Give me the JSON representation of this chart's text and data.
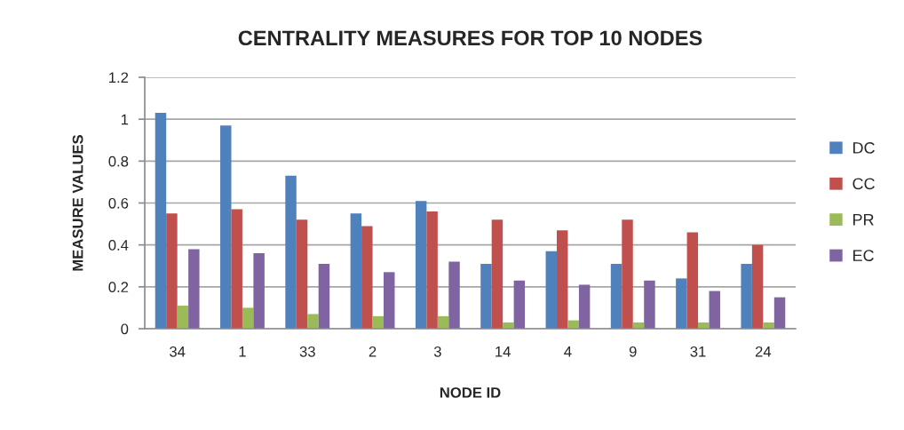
{
  "chart_data": {
    "type": "bar",
    "title": "CENTRALITY MEASURES FOR TOP 10 NODES",
    "xlabel": "NODE ID",
    "ylabel": "MEASURE VALUES",
    "categories": [
      "34",
      "1",
      "33",
      "2",
      "3",
      "14",
      "4",
      "9",
      "31",
      "24"
    ],
    "series": [
      {
        "name": "DC",
        "color": "#4f81bd",
        "values": [
          1.03,
          0.97,
          0.73,
          0.55,
          0.61,
          0.31,
          0.37,
          0.31,
          0.24,
          0.31
        ]
      },
      {
        "name": "CC",
        "color": "#c0504d",
        "values": [
          0.55,
          0.57,
          0.52,
          0.49,
          0.56,
          0.52,
          0.47,
          0.52,
          0.46,
          0.4
        ]
      },
      {
        "name": "PR",
        "color": "#9bbb59",
        "values": [
          0.11,
          0.1,
          0.07,
          0.06,
          0.06,
          0.03,
          0.04,
          0.03,
          0.03,
          0.03
        ]
      },
      {
        "name": "EC",
        "color": "#8064a2",
        "values": [
          0.38,
          0.36,
          0.31,
          0.27,
          0.32,
          0.23,
          0.21,
          0.23,
          0.18,
          0.15
        ]
      }
    ],
    "ylim": [
      0,
      1.2
    ],
    "yticks": [
      0,
      0.2,
      0.4,
      0.6,
      0.8,
      1,
      1.2
    ],
    "grid": "y",
    "legend": "right"
  }
}
